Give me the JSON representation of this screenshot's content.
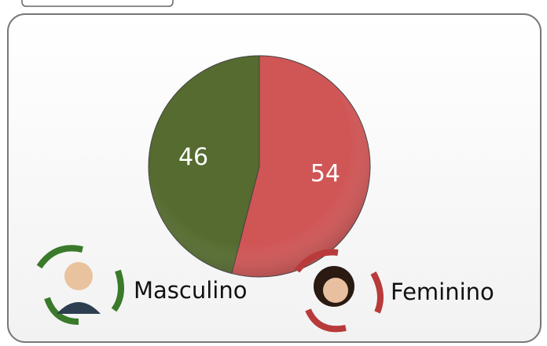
{
  "chart_data": {
    "type": "pie",
    "categories": [
      "Feminino",
      "Masculino"
    ],
    "values": [
      54,
      46
    ],
    "colors": [
      "#d05555",
      "#556b2f"
    ]
  }
}
